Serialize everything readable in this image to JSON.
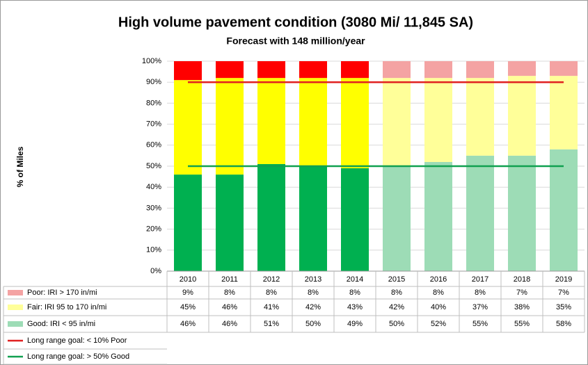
{
  "chart_data": {
    "type": "stacked_bar",
    "title": "High volume pavement condition (3080 Mi/ 11,845 SA)",
    "subtitle": "Forecast with 148 million/year",
    "y_label": "% of Miles",
    "categories": [
      "2010",
      "2011",
      "2012",
      "2013",
      "2014",
      "2015",
      "2016",
      "2017",
      "2018",
      "2019"
    ],
    "series": [
      {
        "name": "Good: IRI < 95 in/mi",
        "values": [
          46,
          46,
          51,
          50,
          49,
          50,
          52,
          55,
          55,
          58
        ],
        "value_labels": [
          "46%",
          "46%",
          "51%",
          "50%",
          "49%",
          "50%",
          "52%",
          "55%",
          "55%",
          "58%"
        ],
        "colors": [
          "#00b050",
          "#00b050",
          "#00b050",
          "#00b050",
          "#00b050",
          "#9ddcb6",
          "#9ddcb6",
          "#9ddcb6",
          "#9ddcb6",
          "#9ddcb6"
        ]
      },
      {
        "name": "Fair: IRI 95 to 170 in/mi",
        "values": [
          45,
          46,
          41,
          42,
          43,
          42,
          40,
          37,
          38,
          35
        ],
        "value_labels": [
          "45%",
          "46%",
          "41%",
          "42%",
          "43%",
          "42%",
          "40%",
          "37%",
          "38%",
          "35%"
        ],
        "colors": [
          "#ffff00",
          "#ffff00",
          "#ffff00",
          "#ffff00",
          "#ffff00",
          "#ffff99",
          "#ffff99",
          "#ffff99",
          "#ffff99",
          "#ffff99"
        ]
      },
      {
        "name": "Poor: IRI > 170 in/mi",
        "values": [
          9,
          8,
          8,
          8,
          8,
          8,
          8,
          8,
          7,
          7
        ],
        "value_labels": [
          "9%",
          "8%",
          "8%",
          "8%",
          "8%",
          "8%",
          "8%",
          "8%",
          "7%",
          "7%"
        ],
        "colors": [
          "#ff0000",
          "#ff0000",
          "#ff0000",
          "#ff0000",
          "#ff0000",
          "#f4a3a3",
          "#f4a3a3",
          "#f4a3a3",
          "#f4a3a3",
          "#f4a3a3"
        ]
      }
    ],
    "goals": [
      {
        "name": "Long range goal: < 10% Poor",
        "value": 90,
        "color": "#e02020"
      },
      {
        "name": "Long range goal: > 50% Good",
        "value": 50,
        "color": "#10a050"
      }
    ],
    "ylim": [
      0,
      100
    ],
    "yticks": [
      {
        "value": 0,
        "label": "0%"
      },
      {
        "value": 10,
        "label": "10%"
      },
      {
        "value": 20,
        "label": "20%"
      },
      {
        "value": 30,
        "label": "30%"
      },
      {
        "value": 40,
        "label": "40%"
      },
      {
        "value": 50,
        "label": "50%"
      },
      {
        "value": 60,
        "label": "60%"
      },
      {
        "value": 70,
        "label": "70%"
      },
      {
        "value": 80,
        "label": "80%"
      },
      {
        "value": 90,
        "label": "90%"
      },
      {
        "value": 100,
        "label": "100%"
      }
    ],
    "grid": true
  }
}
